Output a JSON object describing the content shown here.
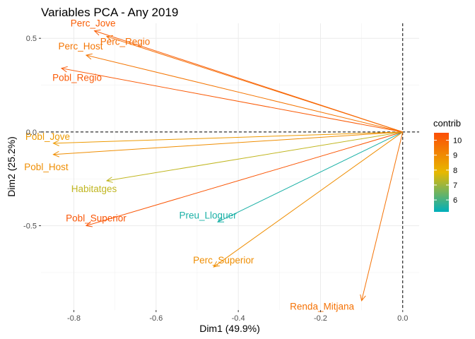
{
  "chart_data": {
    "type": "scatter",
    "subtype": "pca-variable-arrows",
    "title": "Variables PCA - Any 2019",
    "xlabel": "Dim1 (49.9%)",
    "ylabel": "Dim2 (25.2%)",
    "xlim": [
      -0.88,
      0.04
    ],
    "ylim": [
      -0.95,
      0.58
    ],
    "x_ticks": [
      -0.8,
      -0.6,
      -0.4,
      -0.2,
      0.0
    ],
    "x_tick_labels": [
      "-0.8",
      "-0.6",
      "-0.4",
      "-0.2",
      "0.0"
    ],
    "y_ticks": [
      -0.5,
      0.0,
      0.5
    ],
    "y_tick_labels": [
      "-0.5",
      "0.0",
      "0.5"
    ],
    "grid": true,
    "reference_lines": {
      "x": 0,
      "y": 0,
      "style": "dashed"
    },
    "legend": {
      "title": "contrib",
      "placement": "right",
      "type": "colorbar",
      "range": [
        5.2,
        10.5
      ],
      "ticks": [
        6,
        7,
        8,
        9,
        10
      ],
      "colors": [
        "#00AFBB",
        "#E7B800",
        "#FC4E07"
      ]
    },
    "variables": [
      {
        "name": "Perc_Jove",
        "x": -0.75,
        "y": 0.54,
        "contrib": 10.1
      },
      {
        "name": "Perc_Regio",
        "x": -0.72,
        "y": 0.51,
        "contrib": 9.7
      },
      {
        "name": "Perc_Host",
        "x": -0.77,
        "y": 0.41,
        "contrib": 9.5
      },
      {
        "name": "Pobl_Regio",
        "x": -0.83,
        "y": 0.34,
        "contrib": 10.2
      },
      {
        "name": "Pobl_Jove",
        "x": -0.85,
        "y": -0.06,
        "contrib": 8.6
      },
      {
        "name": "Pobl_Host",
        "x": -0.85,
        "y": -0.12,
        "contrib": 8.9
      },
      {
        "name": "Habitatges",
        "x": -0.72,
        "y": -0.26,
        "contrib": 7.4
      },
      {
        "name": "Pobl_Superior",
        "x": -0.77,
        "y": -0.5,
        "contrib": 10.3
      },
      {
        "name": "Preu_Lloguer",
        "x": -0.45,
        "y": -0.48,
        "contrib": 5.5
      },
      {
        "name": "Perc_Superior",
        "x": -0.46,
        "y": -0.72,
        "contrib": 8.9
      },
      {
        "name": "Renda_Mitjana",
        "x": -0.1,
        "y": -0.9,
        "contrib": 9.6
      }
    ]
  }
}
